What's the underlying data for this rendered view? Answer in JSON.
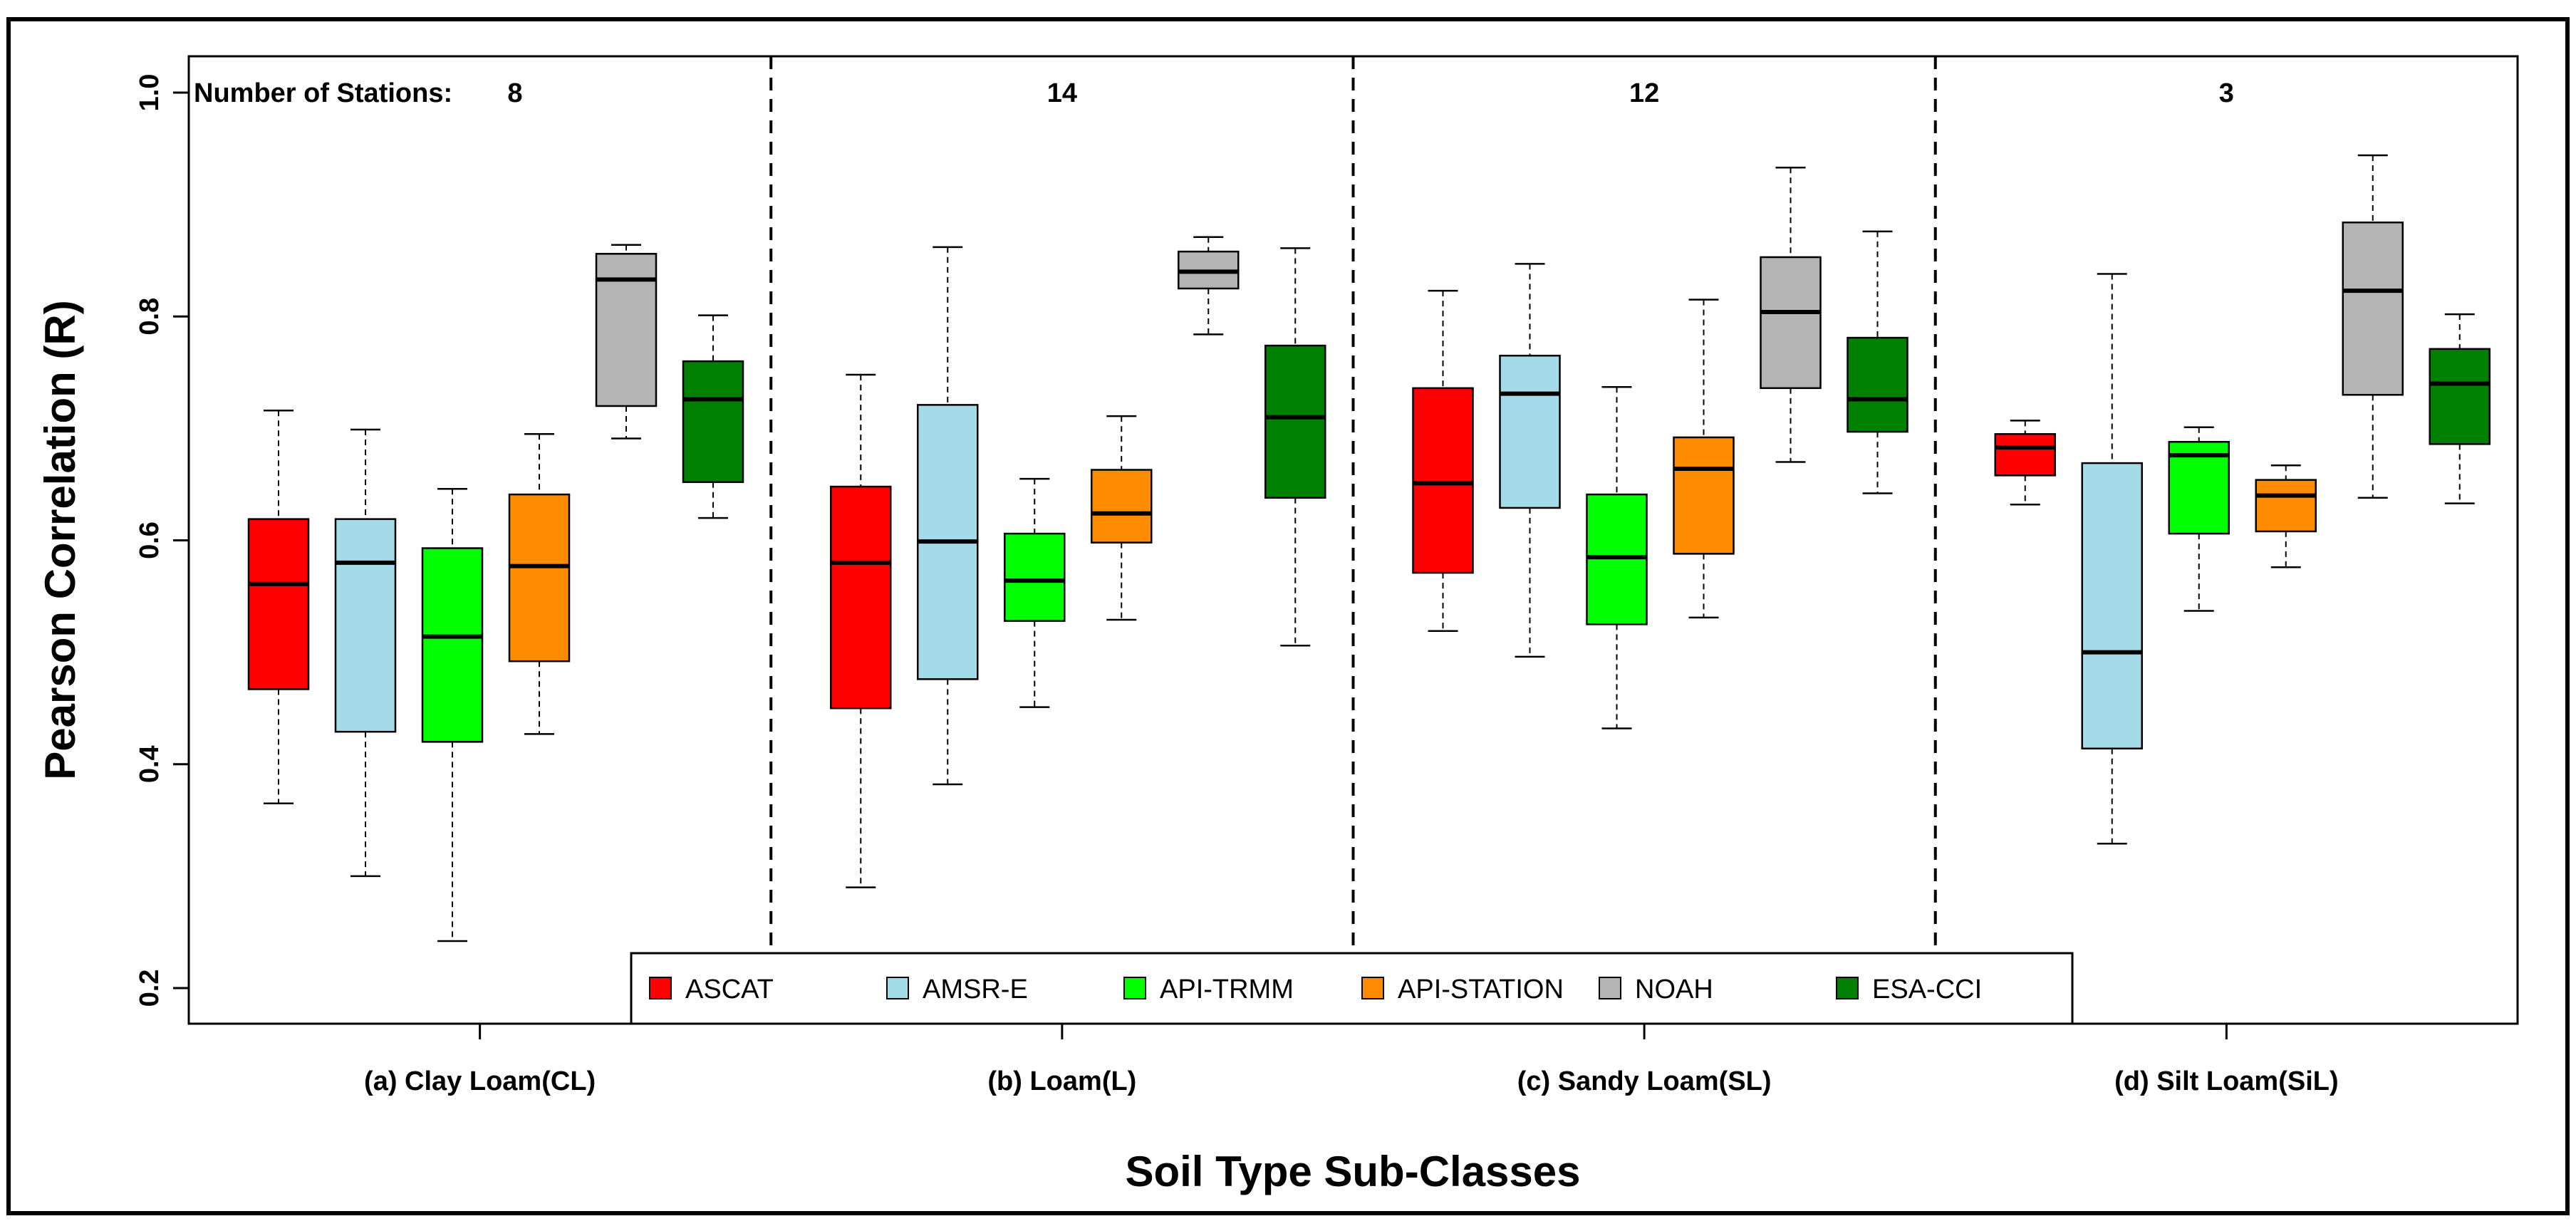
{
  "chart_data": {
    "type": "boxplot",
    "title": "",
    "xlabel": "Soil Type Sub-Classes",
    "ylabel": "Pearson Correlation (R)",
    "ylim": [
      0.17,
      1.03
    ],
    "yticks": [
      0.2,
      0.4,
      0.6,
      0.8,
      1.0
    ],
    "ytick_labels": [
      "0.2",
      "0.4",
      "0.6",
      "0.8",
      "1.0"
    ],
    "stations_label": "Number of Stations:",
    "categories": [
      "(a) Clay Loam(CL)",
      "(b) Loam(L)",
      "(c) Sandy Loam(SL)",
      "(d) Silt Loam(SiL)"
    ],
    "station_counts": [
      "8",
      "14",
      "12",
      "3"
    ],
    "legend_position": "bottom-center",
    "series": [
      {
        "name": "ASCAT",
        "color": "#ff0000",
        "boxes": [
          {
            "min": 0.365,
            "q1": 0.467,
            "median": 0.561,
            "q3": 0.619,
            "max": 0.716
          },
          {
            "min": 0.29,
            "q1": 0.45,
            "median": 0.58,
            "q3": 0.648,
            "max": 0.748
          },
          {
            "min": 0.519,
            "q1": 0.571,
            "median": 0.651,
            "q3": 0.736,
            "max": 0.823
          },
          {
            "min": 0.632,
            "q1": 0.658,
            "median": 0.683,
            "q3": 0.695,
            "max": 0.707
          }
        ]
      },
      {
        "name": "AMSR-E",
        "color": "#a3dbe9",
        "boxes": [
          {
            "min": 0.3,
            "q1": 0.429,
            "median": 0.58,
            "q3": 0.619,
            "max": 0.699
          },
          {
            "min": 0.382,
            "q1": 0.476,
            "median": 0.599,
            "q3": 0.721,
            "max": 0.862
          },
          {
            "min": 0.496,
            "q1": 0.629,
            "median": 0.731,
            "q3": 0.765,
            "max": 0.847
          },
          {
            "min": 0.329,
            "q1": 0.414,
            "median": 0.5,
            "q3": 0.669,
            "max": 0.838
          }
        ]
      },
      {
        "name": "API-TRMM",
        "color": "#00ff00",
        "boxes": [
          {
            "min": 0.242,
            "q1": 0.42,
            "median": 0.514,
            "q3": 0.593,
            "max": 0.646
          },
          {
            "min": 0.451,
            "q1": 0.528,
            "median": 0.564,
            "q3": 0.606,
            "max": 0.655
          },
          {
            "min": 0.432,
            "q1": 0.525,
            "median": 0.585,
            "q3": 0.641,
            "max": 0.737
          },
          {
            "min": 0.537,
            "q1": 0.606,
            "median": 0.676,
            "q3": 0.688,
            "max": 0.701
          }
        ]
      },
      {
        "name": "API-STATION",
        "color": "#ff8c00",
        "boxes": [
          {
            "min": 0.427,
            "q1": 0.492,
            "median": 0.577,
            "q3": 0.641,
            "max": 0.695
          },
          {
            "min": 0.529,
            "q1": 0.598,
            "median": 0.624,
            "q3": 0.663,
            "max": 0.711
          },
          {
            "min": 0.531,
            "q1": 0.588,
            "median": 0.664,
            "q3": 0.692,
            "max": 0.815
          },
          {
            "min": 0.576,
            "q1": 0.608,
            "median": 0.64,
            "q3": 0.654,
            "max": 0.667
          }
        ]
      },
      {
        "name": "NOAH",
        "color": "#b4b4b4",
        "boxes": [
          {
            "min": 0.691,
            "q1": 0.72,
            "median": 0.833,
            "q3": 0.856,
            "max": 0.864
          },
          {
            "min": 0.784,
            "q1": 0.825,
            "median": 0.84,
            "q3": 0.858,
            "max": 0.871
          },
          {
            "min": 0.67,
            "q1": 0.736,
            "median": 0.804,
            "q3": 0.853,
            "max": 0.933
          },
          {
            "min": 0.638,
            "q1": 0.73,
            "median": 0.823,
            "q3": 0.884,
            "max": 0.944
          }
        ]
      },
      {
        "name": "ESA-CCI",
        "color": "#008000",
        "boxes": [
          {
            "min": 0.62,
            "q1": 0.652,
            "median": 0.726,
            "q3": 0.76,
            "max": 0.801
          },
          {
            "min": 0.506,
            "q1": 0.638,
            "median": 0.71,
            "q3": 0.774,
            "max": 0.861
          },
          {
            "min": 0.642,
            "q1": 0.697,
            "median": 0.726,
            "q3": 0.781,
            "max": 0.876
          },
          {
            "min": 0.633,
            "q1": 0.686,
            "median": 0.74,
            "q3": 0.771,
            "max": 0.802
          }
        ]
      }
    ]
  }
}
